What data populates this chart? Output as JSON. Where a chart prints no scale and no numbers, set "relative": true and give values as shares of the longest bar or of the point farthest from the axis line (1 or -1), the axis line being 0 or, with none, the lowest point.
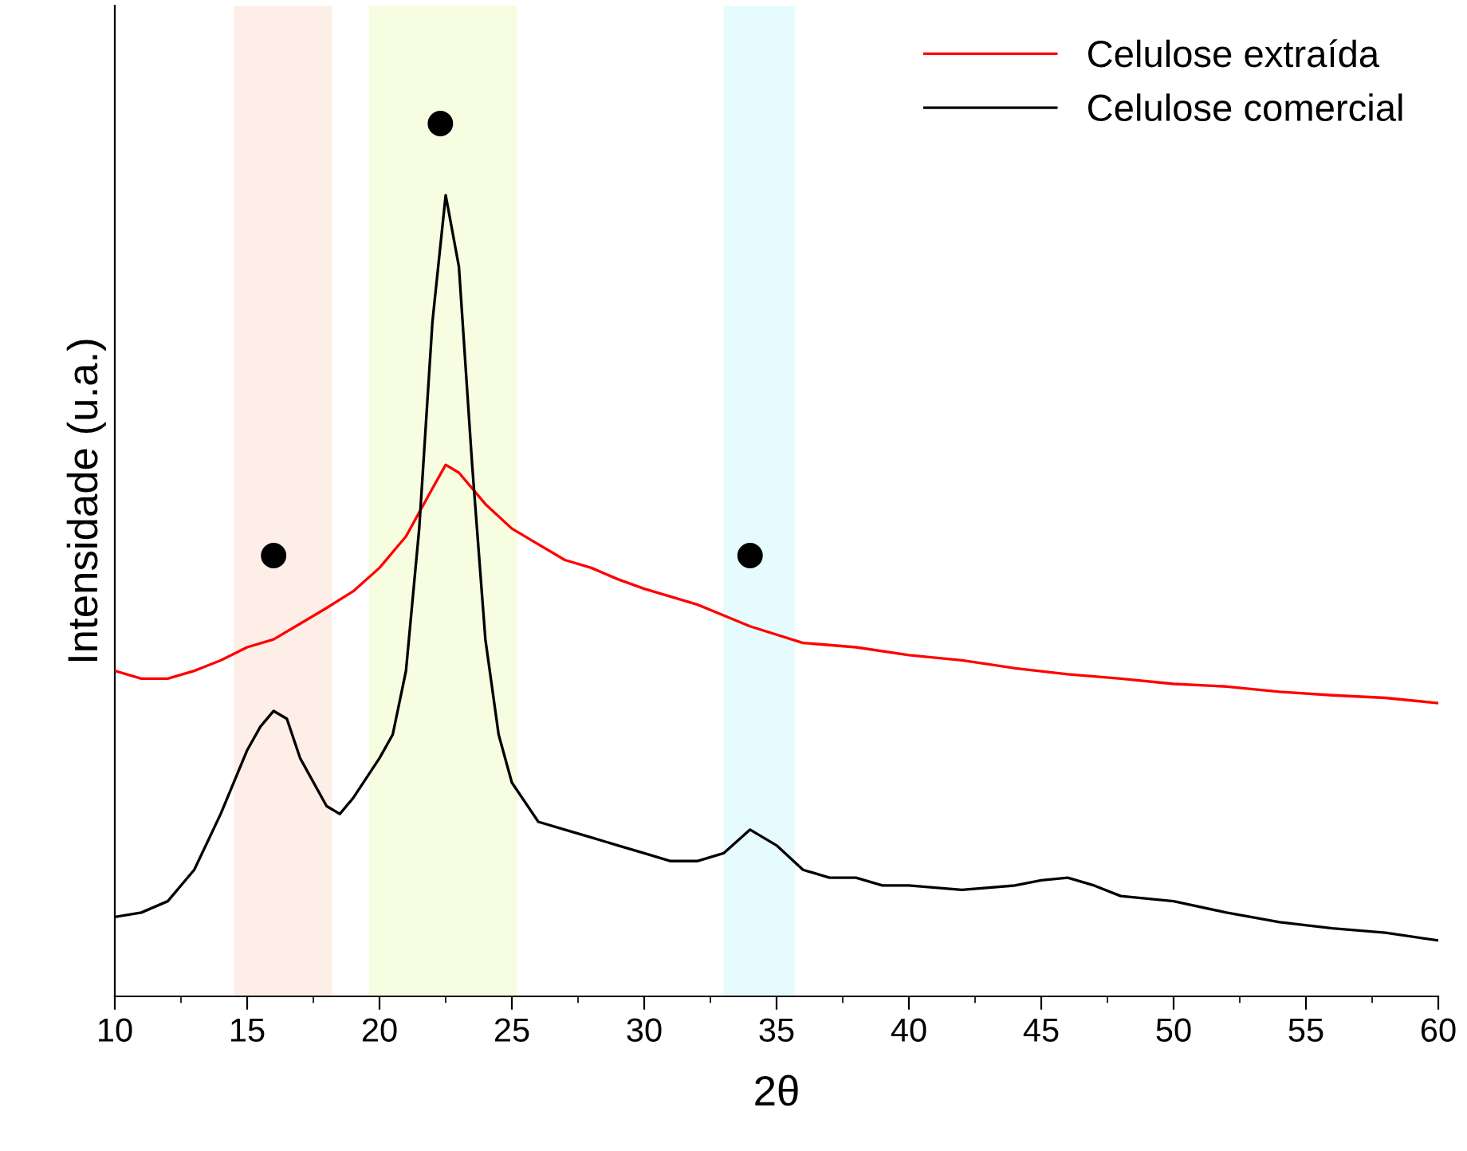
{
  "chart_data": {
    "type": "line",
    "xlabel": "2θ",
    "ylabel": "Intensidade (u.a.)",
    "relative": true,
    "xlim": [
      10,
      60
    ],
    "xticks": [
      10,
      15,
      20,
      25,
      30,
      35,
      40,
      45,
      50,
      55,
      60
    ],
    "tick_labels": "x",
    "grid": false,
    "legend": "top right",
    "line_style": "solid",
    "marker": "none",
    "bands": [
      {
        "axis": "x",
        "from": 14.5,
        "to": 18.2,
        "color": "#fdeee8"
      },
      {
        "axis": "x",
        "from": 19.6,
        "to": 25.2,
        "color": "#f6fde0"
      },
      {
        "axis": "x",
        "from": 33.0,
        "to": 35.7,
        "color": "#e6fbfd"
      }
    ],
    "series": [
      {
        "name": "Celulose extraída",
        "color": "#ff0000",
        "x": [
          10,
          11,
          12,
          13,
          14,
          15,
          16,
          17,
          18,
          19,
          20,
          21,
          22,
          22.5,
          23,
          24,
          25,
          26,
          27,
          28,
          29,
          30,
          32,
          34,
          36,
          38,
          40,
          42,
          44,
          46,
          48,
          50,
          52,
          54,
          56,
          58,
          60
        ],
        "values": [
          0.373,
          0.364,
          0.364,
          0.373,
          0.385,
          0.4,
          0.409,
          0.427,
          0.445,
          0.464,
          0.491,
          0.527,
          0.582,
          0.609,
          0.6,
          0.564,
          0.536,
          0.518,
          0.5,
          0.491,
          0.478,
          0.467,
          0.449,
          0.424,
          0.405,
          0.4,
          0.391,
          0.385,
          0.376,
          0.369,
          0.364,
          0.358,
          0.355,
          0.349,
          0.345,
          0.342,
          0.336
        ]
      },
      {
        "name": "Celulose comercial",
        "color": "#000000",
        "x": [
          10,
          11,
          12,
          13,
          14,
          15,
          15.5,
          16,
          16.5,
          17,
          18,
          18.5,
          19,
          20,
          20.5,
          21,
          21.5,
          22,
          22.5,
          23,
          23.5,
          24,
          24.5,
          25,
          26,
          27,
          28,
          29,
          30,
          31,
          32,
          33,
          34,
          35,
          36,
          37,
          38,
          39,
          40,
          42,
          44,
          45,
          46,
          47,
          48,
          50,
          52,
          54,
          56,
          58,
          60
        ],
        "values": [
          0.091,
          0.096,
          0.109,
          0.145,
          0.209,
          0.282,
          0.309,
          0.327,
          0.318,
          0.273,
          0.218,
          0.209,
          0.227,
          0.273,
          0.3,
          0.373,
          0.536,
          0.773,
          0.918,
          0.836,
          0.609,
          0.409,
          0.3,
          0.245,
          0.2,
          0.191,
          0.182,
          0.173,
          0.164,
          0.155,
          0.155,
          0.164,
          0.191,
          0.173,
          0.145,
          0.136,
          0.136,
          0.127,
          0.127,
          0.122,
          0.127,
          0.133,
          0.136,
          0.127,
          0.115,
          0.109,
          0.096,
          0.085,
          0.078,
          0.073,
          0.064
        ]
      },
      {
        "type": "scatter",
        "color": "#000000",
        "marker": "circle",
        "x": [
          16,
          22.3,
          34
        ],
        "values": [
          0.505,
          1.0,
          0.505
        ]
      }
    ]
  }
}
